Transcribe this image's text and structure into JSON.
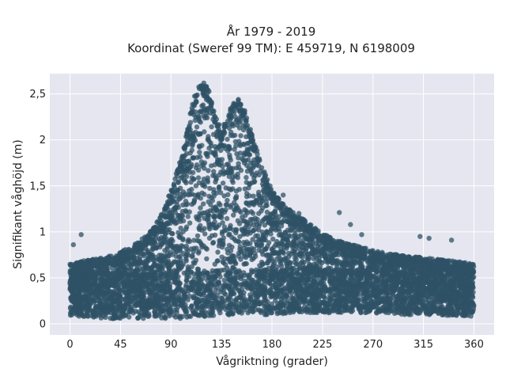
{
  "chart_data": {
    "type": "scatter",
    "title": [
      "År 1979 - 2019",
      "Koordinat (Sweref 99 TM): E 459719, N 6198009"
    ],
    "xlabel": "Vågriktning (grader)",
    "ylabel": "Signifikant våghöjd (m)",
    "xlim": [
      -18,
      378
    ],
    "ylim": [
      -0.12,
      2.72
    ],
    "xticks": [
      0,
      45,
      90,
      135,
      180,
      225,
      270,
      315,
      360
    ],
    "xtick_labels": [
      "0",
      "45",
      "90",
      "135",
      "180",
      "225",
      "270",
      "315",
      "360"
    ],
    "yticks": [
      0,
      0.5,
      1,
      1.5,
      2,
      2.5
    ],
    "ytick_labels": [
      "0",
      "0,5",
      "1",
      "1,5",
      "2",
      "2,5"
    ],
    "grid": true,
    "marker_color": "#2f5266",
    "plot_background": "#e5e6ef",
    "point_count_sampled": 4500,
    "envelope": {
      "x": [
        0,
        10,
        20,
        30,
        45,
        60,
        70,
        80,
        90,
        100,
        105,
        110,
        115,
        120,
        125,
        130,
        135,
        140,
        145,
        150,
        155,
        160,
        165,
        170,
        180,
        190,
        200,
        210,
        225,
        240,
        255,
        270,
        285,
        300,
        315,
        330,
        345,
        360
      ],
      "y_max": [
        0.65,
        0.68,
        0.7,
        0.72,
        0.78,
        0.88,
        0.98,
        1.15,
        1.45,
        1.85,
        2.15,
        2.45,
        2.62,
        2.62,
        2.5,
        2.25,
        2.12,
        2.25,
        2.4,
        2.45,
        2.35,
        2.15,
        1.95,
        1.75,
        1.45,
        1.3,
        1.2,
        1.12,
        0.98,
        0.9,
        0.85,
        0.8,
        0.76,
        0.74,
        0.72,
        0.7,
        0.68,
        0.65
      ],
      "y_min": [
        0.08,
        0.08,
        0.07,
        0.06,
        0.05,
        0.05,
        0.06,
        0.06,
        0.05,
        0.06,
        0.07,
        0.08,
        0.08,
        0.08,
        0.09,
        0.09,
        0.09,
        0.09,
        0.09,
        0.09,
        0.09,
        0.09,
        0.09,
        0.09,
        0.1,
        0.1,
        0.11,
        0.12,
        0.12,
        0.12,
        0.12,
        0.12,
        0.11,
        0.1,
        0.1,
        0.09,
        0.09,
        0.08
      ]
    },
    "outliers": [
      {
        "x": 10,
        "y": 0.97
      },
      {
        "x": 3,
        "y": 0.86
      },
      {
        "x": 190,
        "y": 1.4
      },
      {
        "x": 185,
        "y": 1.35
      },
      {
        "x": 204,
        "y": 1.2
      },
      {
        "x": 240,
        "y": 1.21
      },
      {
        "x": 250,
        "y": 1.08
      },
      {
        "x": 260,
        "y": 0.97
      },
      {
        "x": 312,
        "y": 0.95
      },
      {
        "x": 320,
        "y": 0.93
      },
      {
        "x": 340,
        "y": 0.91
      }
    ]
  }
}
